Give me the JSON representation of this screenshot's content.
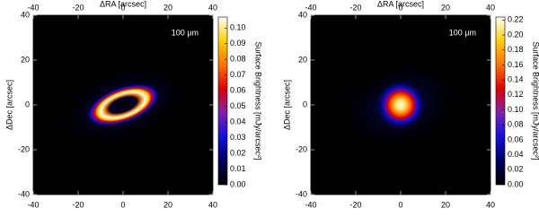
{
  "chart_data": [
    {
      "type": "heatmap",
      "shape": "ring",
      "xlabel": "ΔRA [arcsec]",
      "ylabel": "ΔDec [arcsec]",
      "annotation": "100 μm",
      "xlim": [
        -40,
        40
      ],
      "ylim": [
        -40,
        40
      ],
      "xticks": [
        -40,
        -20,
        0,
        20,
        40
      ],
      "yticks": [
        -40,
        -20,
        0,
        20,
        40
      ],
      "colormap": [
        "#000000",
        "#000060",
        "#1010e0",
        "#8020b0",
        "#e00000",
        "#ff7000",
        "#ffd000",
        "#ffffff"
      ],
      "colorbar": {
        "label": "Surface Brightness [mJy/arcsec²]",
        "lim": [
          0,
          0.107
        ],
        "ticks": [
          {
            "value": 0,
            "label": "0.00"
          },
          {
            "value": 0.01,
            "label": "0.01"
          },
          {
            "value": 0.02,
            "label": "0.02"
          },
          {
            "value": 0.03,
            "label": "0.03"
          },
          {
            "value": 0.04,
            "label": "0.04"
          },
          {
            "value": 0.05,
            "label": "0.05"
          },
          {
            "value": 0.06,
            "label": "0.06"
          },
          {
            "value": 0.07,
            "label": "0.07"
          },
          {
            "value": 0.08,
            "label": "0.08"
          },
          {
            "value": 0.09,
            "label": "0.09"
          },
          {
            "value": 0.1,
            "label": "0.10"
          }
        ]
      }
    },
    {
      "type": "heatmap",
      "shape": "blob",
      "xlabel": "ΔRA [arcsec]",
      "ylabel": "ΔDec [arcsec]",
      "annotation": "100 μm",
      "xlim": [
        -40,
        40
      ],
      "ylim": [
        -40,
        40
      ],
      "xticks": [
        -40,
        -20,
        0,
        20,
        40
      ],
      "yticks": [
        -40,
        -20,
        0,
        20,
        40
      ],
      "colormap": [
        "#000000",
        "#000060",
        "#1010e0",
        "#8020b0",
        "#e00000",
        "#ff7000",
        "#ffd000",
        "#ffffff"
      ],
      "colorbar": {
        "label": "Surface Brightness [mJy/arcsec²]",
        "lim": [
          0,
          0.224
        ],
        "ticks": [
          {
            "value": 0,
            "label": "0.00"
          },
          {
            "value": 0.02,
            "label": "0.02"
          },
          {
            "value": 0.04,
            "label": "0.04"
          },
          {
            "value": 0.06,
            "label": "0.06"
          },
          {
            "value": 0.08,
            "label": "0.08"
          },
          {
            "value": 0.1,
            "label": "0.10"
          },
          {
            "value": 0.12,
            "label": "0.12"
          },
          {
            "value": 0.14,
            "label": "0.14"
          },
          {
            "value": 0.16,
            "label": "0.16"
          },
          {
            "value": 0.18,
            "label": "0.18"
          },
          {
            "value": 0.2,
            "label": "0.20"
          },
          {
            "value": 0.22,
            "label": "0.22"
          }
        ]
      }
    }
  ]
}
